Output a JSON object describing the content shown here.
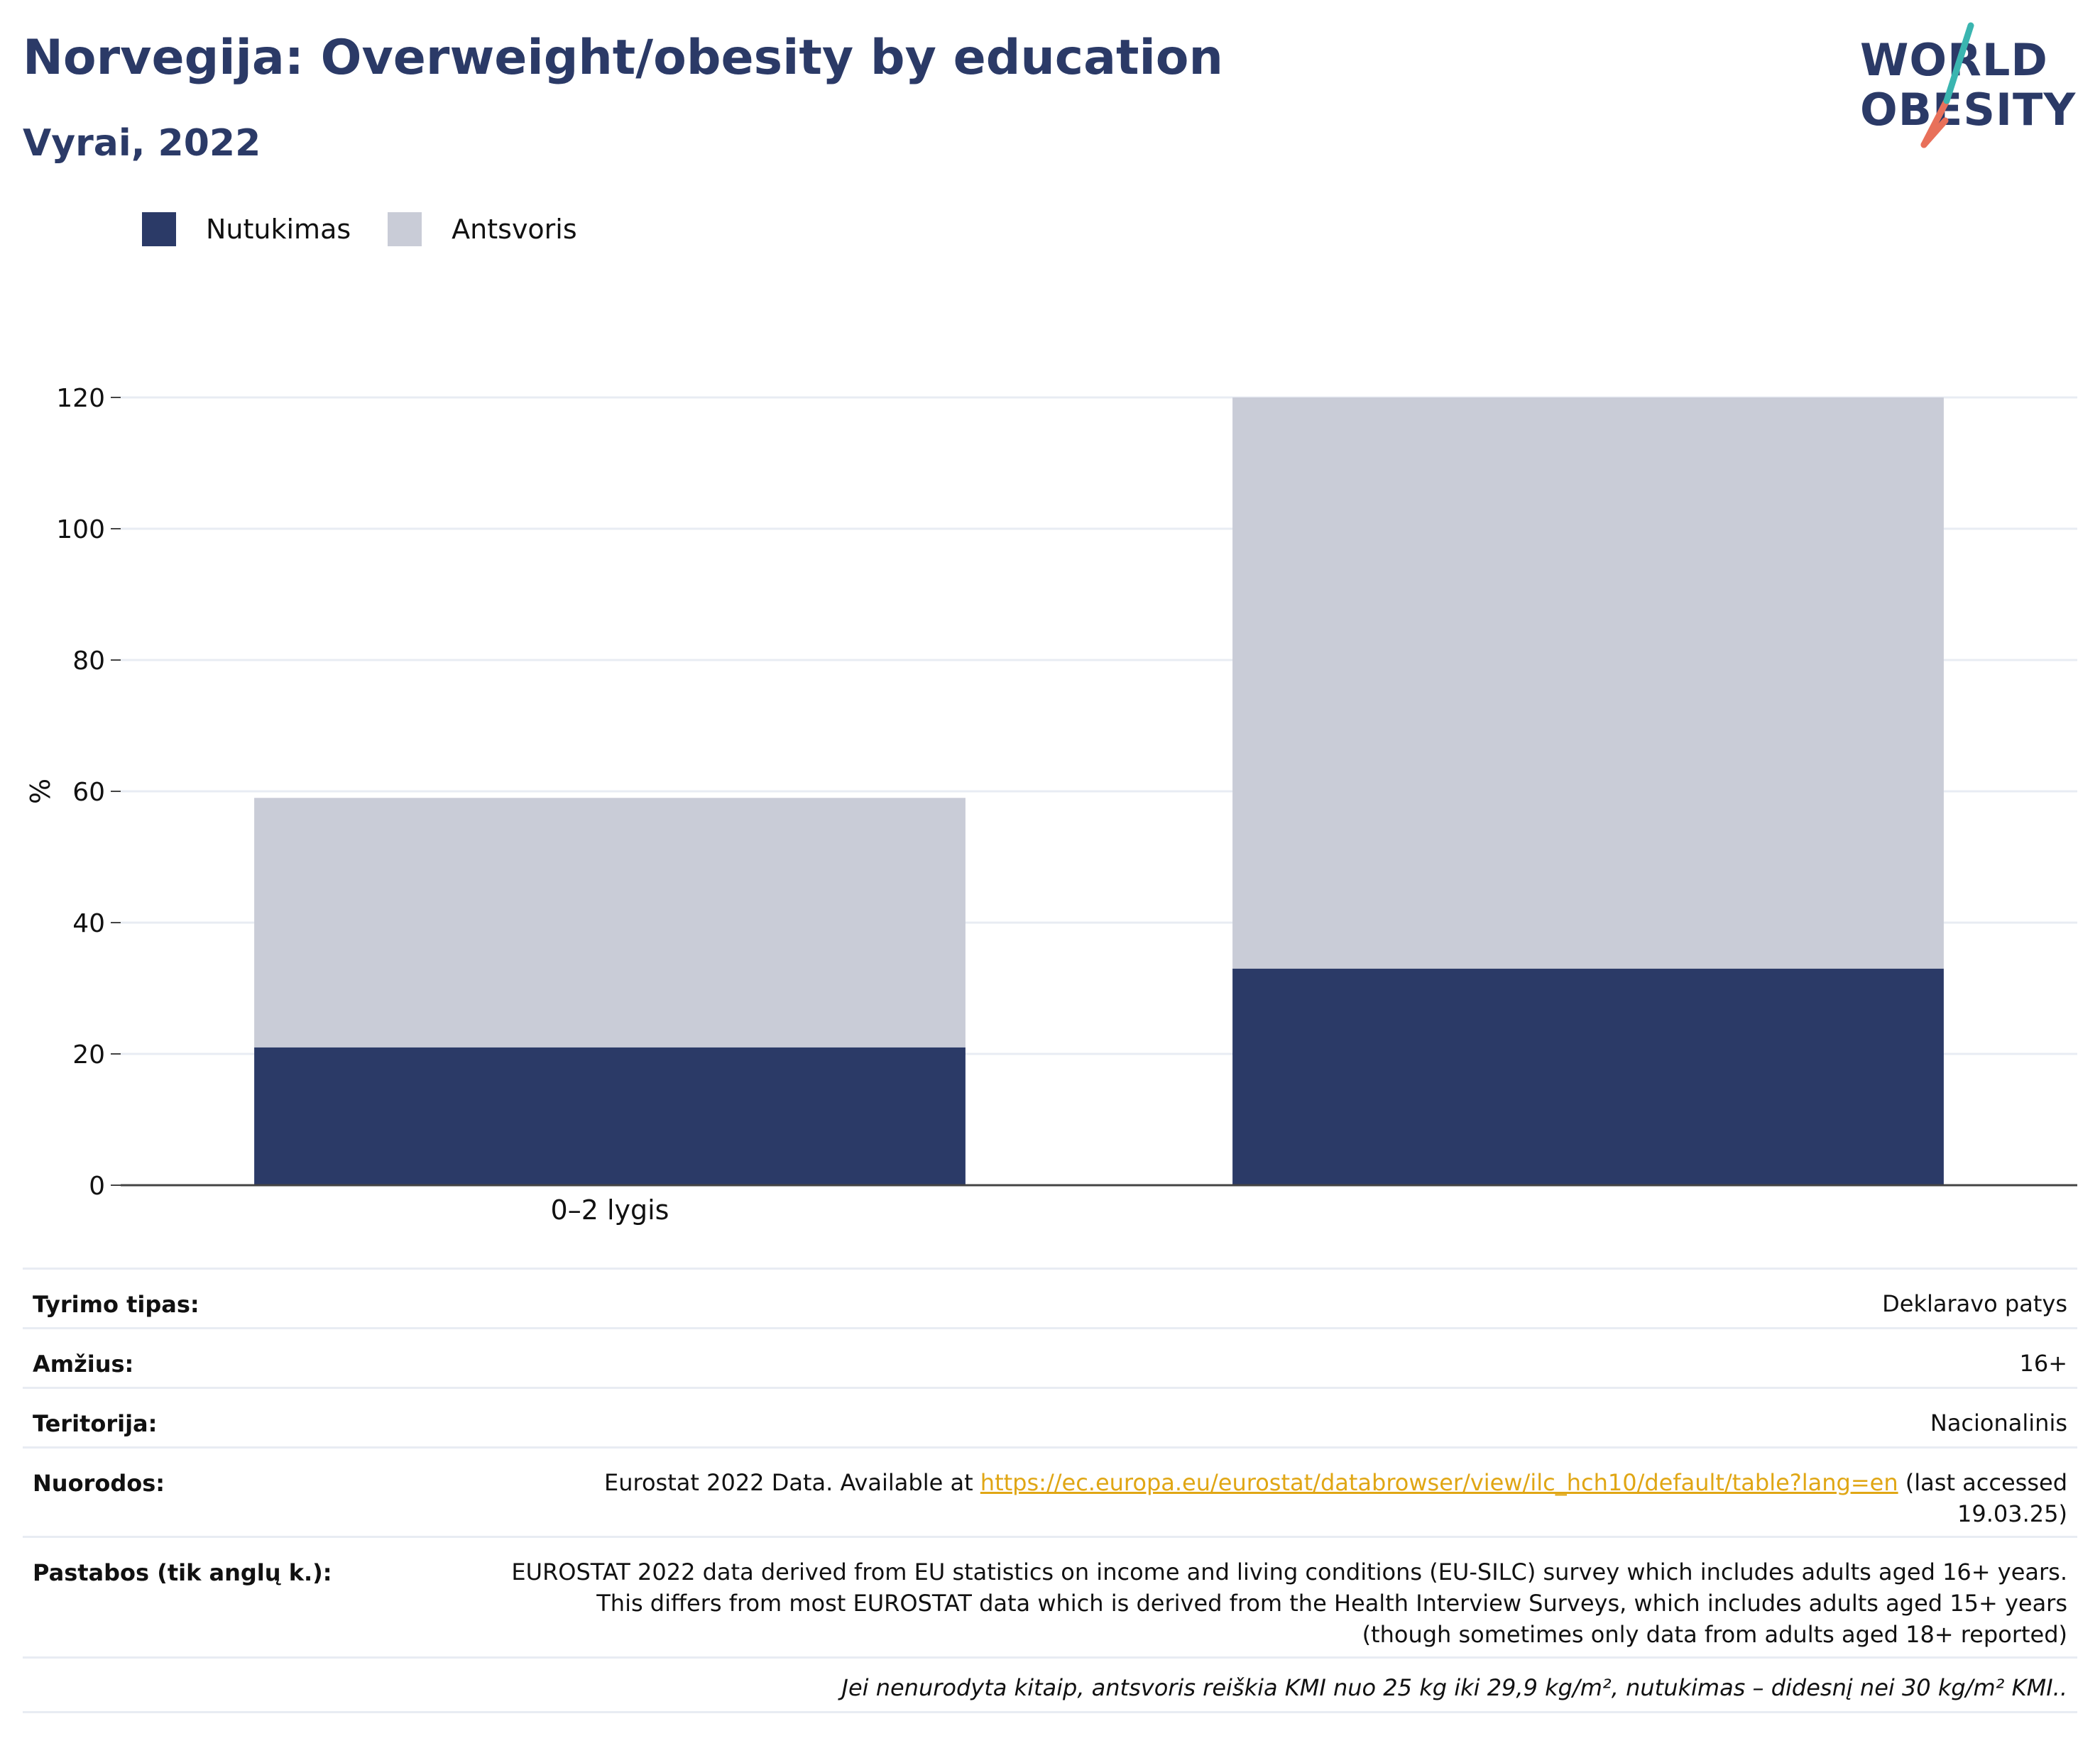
{
  "header": {
    "title": "Norvegija: Overweight/obesity by education",
    "subtitle": "Vyrai, 2022"
  },
  "logo": {
    "line1": "WORLD",
    "line2": "OBESITY",
    "slash_colors": [
      "#3ab5b0",
      "#e8705a"
    ]
  },
  "legend": [
    {
      "label": "Nutukimas",
      "color": "#2b3a67"
    },
    {
      "label": "Antsvoris",
      "color": "#c9ccd7"
    }
  ],
  "chart_data": {
    "type": "bar",
    "stacked": true,
    "categories": [
      "0–2 lygis",
      ""
    ],
    "series": [
      {
        "name": "Nutukimas",
        "color": "#2b3a67",
        "values": [
          21,
          33
        ]
      },
      {
        "name": "Antsvoris",
        "color": "#c9ccd7",
        "values": [
          38,
          87
        ]
      }
    ],
    "ylabel": "%",
    "ylim": [
      0,
      120
    ],
    "yticks": [
      0,
      20,
      40,
      60,
      80,
      100,
      120
    ],
    "grid": true
  },
  "info": {
    "rows": [
      {
        "label": "Tyrimo tipas:",
        "value": "Deklaravo patys"
      },
      {
        "label": "Amžius:",
        "value": "16+"
      },
      {
        "label": "Teritorija:",
        "value": "Nacionalinis"
      }
    ],
    "references": {
      "label": "Nuorodos:",
      "prefix": "Eurostat 2022 Data. Available at ",
      "link": "https://ec.europa.eu/eurostat/databrowser/view/ilc_hch10/default/table?lang=en",
      "suffix": " (last accessed 19.03.25)"
    },
    "notes": {
      "label": "Pastabos (tik anglų k.):",
      "value": "EUROSTAT 2022 data derived from EU statistics on income and living conditions (EU-SILC) survey which includes adults aged 16+ years. This differs from most EUROSTAT data which is derived from the Health Interview Surveys, which includes adults aged 15+ years (though sometimes only data from adults aged 18+ reported)"
    },
    "footnote": "Jei nenurodyta kitaip, antsvoris reiškia KMI nuo 25 kg iki 29,9 kg/m², nutukimas – didesnį nei 30 kg/m² KMI.."
  }
}
